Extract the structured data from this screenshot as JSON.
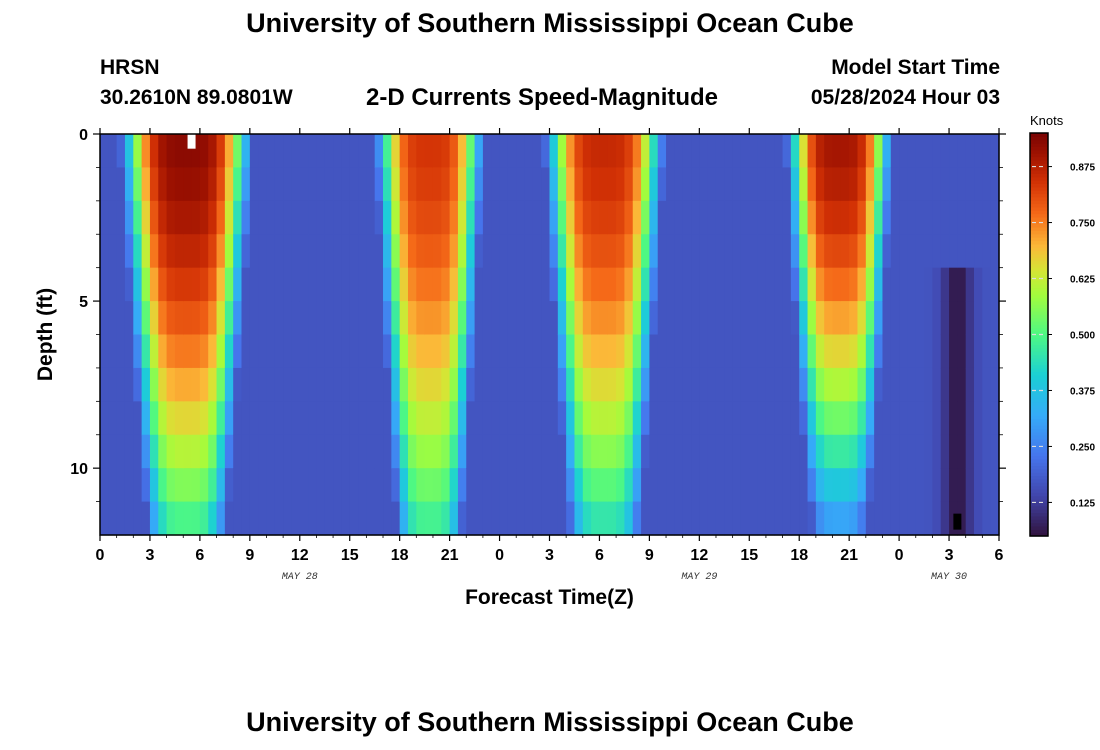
{
  "page": {
    "title": "University of Southern Mississippi Ocean Cube",
    "footer_title": "University of Southern Mississippi Ocean Cube"
  },
  "header": {
    "station": "HRSN",
    "coords": "30.2610N  89.0801W",
    "plot_title": "2-D Currents Speed-Magnitude",
    "model_start_label": "Model Start Time",
    "model_start_value": "05/28/2024 Hour 03"
  },
  "chart_data": {
    "type": "heatmap",
    "title": "2-D Currents Speed-Magnitude",
    "xlabel": "Forecast Time(Z)",
    "ylabel": "Depth (ft)",
    "x_range_hours": [
      0,
      54
    ],
    "y_range_ft": [
      0,
      12
    ],
    "x_tick_labels": [
      "0",
      "3",
      "6",
      "9",
      "12",
      "15",
      "18",
      "21",
      "0",
      "3",
      "6",
      "9",
      "12",
      "15",
      "18",
      "21",
      "0",
      "3",
      "6"
    ],
    "y_tick_values": [
      0,
      5,
      10
    ],
    "y_tick_labels": [
      "0",
      "5",
      "10"
    ],
    "date_labels": [
      {
        "text": "MAY 28",
        "x_hours": 12
      },
      {
        "text": "MAY 29",
        "x_hours": 36
      },
      {
        "text": "MAY 30",
        "x_hours": 51
      }
    ],
    "colorbar": {
      "unit": "Knots",
      "min": 0.05,
      "max": 0.95,
      "ticks": [
        0.125,
        0.25,
        0.375,
        0.5,
        0.625,
        0.75,
        0.875
      ],
      "tick_labels": [
        "0.125",
        "0.250",
        "0.375",
        "0.500",
        "0.625",
        "0.750",
        "0.875"
      ]
    },
    "speed_peaks": [
      {
        "center_h": 5.2,
        "surface_knots": 0.93,
        "halfwidth_h": 3.6,
        "min_depth_ft": 0,
        "max_depth_ft": 12,
        "taper": 0.5
      },
      {
        "center_h": 19.8,
        "surface_knots": 0.84,
        "halfwidth_h": 3.0,
        "min_depth_ft": 0,
        "max_depth_ft": 12,
        "taper": 0.45
      },
      {
        "center_h": 30.3,
        "surface_knots": 0.86,
        "halfwidth_h": 3.3,
        "min_depth_ft": 0,
        "max_depth_ft": 12,
        "taper": 0.5
      },
      {
        "center_h": 44.4,
        "surface_knots": 0.9,
        "halfwidth_h": 2.9,
        "min_depth_ft": 0,
        "max_depth_ft": 12,
        "taper": 0.7
      }
    ],
    "background_knots": 0.17,
    "slack_minimum": {
      "center_h": 51.5,
      "depth_from_ft": 4.5,
      "knots": 0.06
    },
    "markers": [
      {
        "x_hours": 5.5,
        "depth_ft": 0.2,
        "color": "#ffffff"
      },
      {
        "x_hours": 51.5,
        "depth_ft": 11.6,
        "color": "#000000"
      }
    ]
  }
}
